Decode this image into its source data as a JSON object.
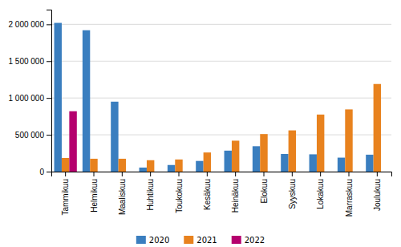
{
  "chart_data": {
    "type": "bar",
    "categories": [
      "Tammikuu",
      "Helmikuu",
      "Maaliskuu",
      "Huhtikuu",
      "Toukokuu",
      "Kesäkuu",
      "Heinäkuu",
      "Elokuu",
      "Syyskuu",
      "Lokakuu",
      "Marraskuu",
      "Joulukuu"
    ],
    "series": [
      {
        "name": "2020",
        "color": "#3A7EBF",
        "values": [
          2020000,
          1920000,
          950000,
          55000,
          90000,
          145000,
          285000,
          345000,
          240000,
          235000,
          190000,
          230000
        ]
      },
      {
        "name": "2021",
        "color": "#E8821E",
        "values": [
          185000,
          175000,
          175000,
          155000,
          165000,
          260000,
          420000,
          510000,
          560000,
          775000,
          845000,
          1190000
        ]
      },
      {
        "name": "2022",
        "color": "#B5006E",
        "values": [
          820000,
          0,
          0,
          0,
          0,
          0,
          0,
          0,
          0,
          0,
          0,
          0
        ]
      }
    ],
    "ylim": [
      0,
      2200000
    ],
    "yticks": [
      0,
      {
        "value": 500000,
        "label": "500 000"
      },
      {
        "value": 1000000,
        "label": "1 000 000"
      },
      {
        "value": 1500000,
        "label": "1 500 000"
      },
      {
        "value": 2000000,
        "label": "2 000 000"
      }
    ],
    "grid": true,
    "legend": "bottom"
  }
}
